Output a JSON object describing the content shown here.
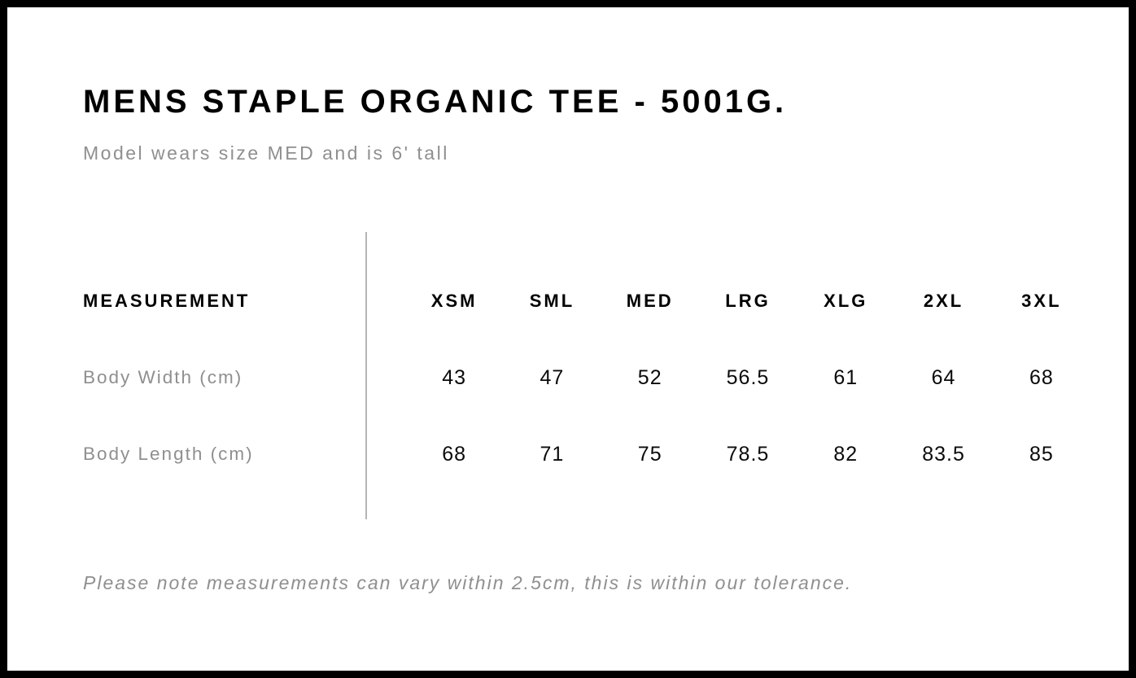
{
  "page": {
    "title": "MENS STAPLE ORGANIC TEE - 5001G.",
    "subtitle": "Model wears size MED and is 6' tall",
    "footnote": "Please note measurements can vary within 2.5cm, this is within our tolerance."
  },
  "size_chart": {
    "measurement_header": "MEASUREMENT",
    "sizes": [
      "XSM",
      "SML",
      "MED",
      "LRG",
      "XLG",
      "2XL",
      "3XL"
    ],
    "rows": [
      {
        "label": "Body Width (cm)",
        "values": [
          "43",
          "47",
          "52",
          "56.5",
          "61",
          "64",
          "68"
        ]
      },
      {
        "label": "Body Length (cm)",
        "values": [
          "68",
          "71",
          "75",
          "78.5",
          "82",
          "83.5",
          "85"
        ]
      }
    ]
  },
  "chart_data": {
    "type": "table",
    "columns": [
      "MEASUREMENT",
      "XSM",
      "SML",
      "MED",
      "LRG",
      "XLG",
      "2XL",
      "3XL"
    ],
    "rows": [
      [
        "Body Width (cm)",
        43,
        47,
        52,
        56.5,
        61,
        64,
        68
      ],
      [
        "Body Length (cm)",
        68,
        71,
        75,
        78.5,
        82,
        83.5,
        85
      ]
    ],
    "title": "MENS STAPLE ORGANIC TEE - 5001G.",
    "notes": "Please note measurements can vary within 2.5cm, this is within our tolerance."
  },
  "colors": {
    "frame": "#000000",
    "text": "#000000",
    "muted": "#8f8f8f",
    "divider": "#b5b5b5",
    "background": "#ffffff"
  }
}
